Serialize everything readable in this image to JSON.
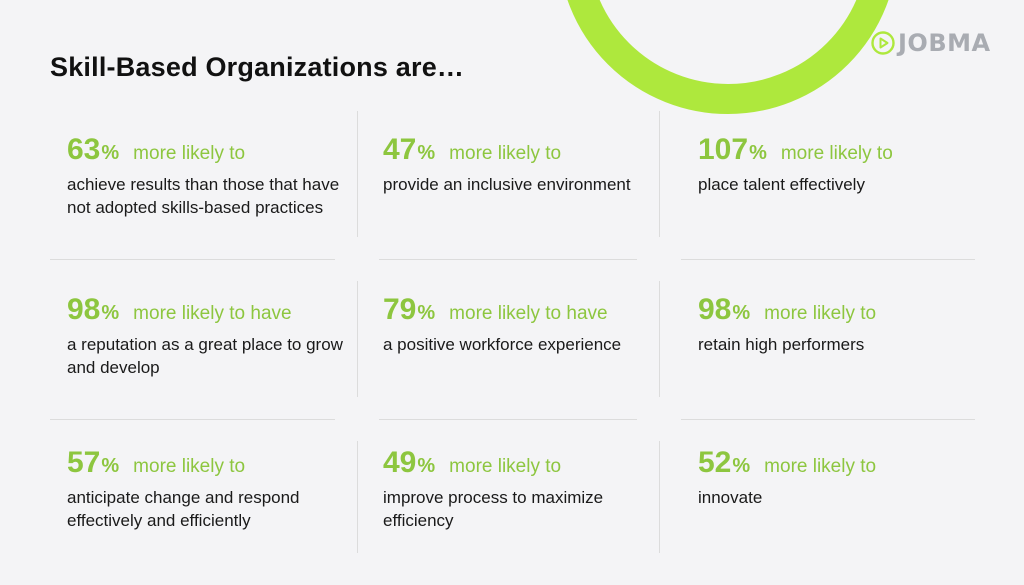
{
  "brand": {
    "logo_text": "JOBMA",
    "accent": "#aee83d",
    "stat_color": "#8dc63f"
  },
  "title": "Skill-Based Organizations are…",
  "stats": [
    {
      "value": "63",
      "unit": "%",
      "lead": "more likely to",
      "text": "achieve results than those that have not adopted skills-based practices"
    },
    {
      "value": "47",
      "unit": "%",
      "lead": "more likely to",
      "text": "provide an inclusive environment"
    },
    {
      "value": "107",
      "unit": "%",
      "lead": "more likely to",
      "text": "place talent effectively"
    },
    {
      "value": "98",
      "unit": "%",
      "lead": "more likely to have",
      "text": "a reputation as a great place to grow and develop"
    },
    {
      "value": "79",
      "unit": "%",
      "lead": "more likely to have",
      "text": "a positive workforce experience"
    },
    {
      "value": "98",
      "unit": "%",
      "lead": "more likely to",
      "text": "retain high performers"
    },
    {
      "value": "57",
      "unit": "%",
      "lead": "more likely to",
      "text": "anticipate change and respond effectively and efficiently"
    },
    {
      "value": "49",
      "unit": "%",
      "lead": "more likely to",
      "text": "improve process to maximize efficiency"
    },
    {
      "value": "52",
      "unit": "%",
      "lead": "more likely to",
      "text": "innovate"
    }
  ]
}
